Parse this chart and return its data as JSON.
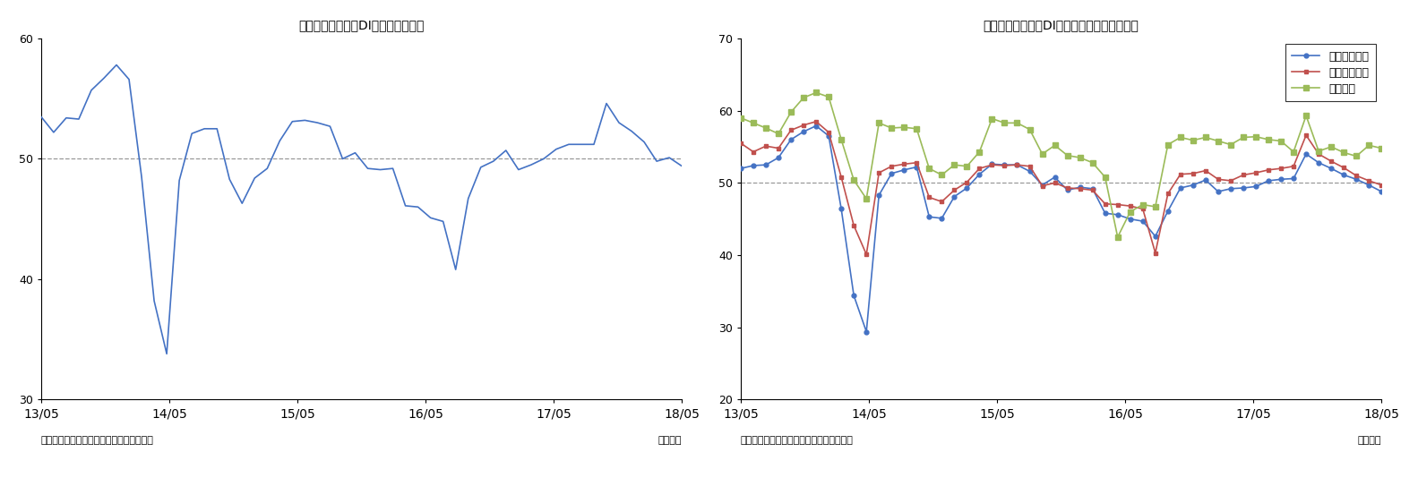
{
  "title1": "景気の先行き判断DI（季節調整値）",
  "title2": "景気の先行き判断DI（分野別、季節調整値）",
  "footnote_left": "（資料）内閣府「景気ウォッチャー調査」",
  "footnote_right": "（月次）",
  "xtick_labels": [
    "13/05",
    "14/05",
    "15/05",
    "16/05",
    "17/05",
    "18/05"
  ],
  "chart1": {
    "ylim": [
      30,
      60
    ],
    "yticks": [
      30,
      40,
      50,
      60
    ],
    "ref_line": 50,
    "color": "#4472C4",
    "values": [
      53.5,
      52.2,
      53.4,
      53.3,
      55.7,
      56.7,
      57.8,
      56.6,
      48.5,
      38.2,
      33.8,
      48.2,
      52.1,
      52.5,
      52.5,
      48.3,
      46.3,
      48.4,
      49.2,
      51.5,
      53.1,
      53.2,
      53.0,
      52.7,
      50.0,
      50.5,
      49.2,
      49.1,
      49.2,
      46.1,
      46.0,
      45.1,
      44.8,
      40.8,
      46.7,
      49.3,
      49.8,
      50.7,
      49.1,
      49.5,
      50.0,
      50.8,
      51.2,
      51.2,
      51.2,
      54.6,
      53.0,
      52.3,
      51.4,
      49.8,
      50.1,
      49.4
    ]
  },
  "chart2": {
    "ylim": [
      20,
      70
    ],
    "yticks": [
      20,
      30,
      40,
      50,
      60,
      70
    ],
    "ref_line": 50,
    "legend": [
      "家計動向関連",
      "企業動向関連",
      "雇用関連"
    ],
    "colors": [
      "#4472C4",
      "#C0504D",
      "#9BBB59"
    ],
    "household": [
      52.0,
      52.4,
      52.5,
      53.5,
      56.0,
      57.1,
      57.9,
      56.5,
      46.4,
      34.4,
      29.4,
      48.3,
      51.3,
      51.8,
      52.2,
      45.3,
      45.1,
      48.1,
      49.3,
      51.2,
      52.6,
      52.5,
      52.5,
      51.6,
      49.7,
      50.8,
      49.0,
      49.4,
      49.2,
      45.8,
      45.6,
      45.0,
      44.7,
      42.6,
      46.1,
      49.3,
      49.7,
      50.4,
      48.8,
      49.2,
      49.3,
      49.5,
      50.3,
      50.5,
      50.6,
      54.0,
      52.8,
      52.0,
      51.1,
      50.5,
      49.7,
      48.8
    ],
    "enterprise": [
      55.5,
      54.3,
      55.1,
      54.8,
      57.3,
      58.0,
      58.5,
      57.0,
      50.8,
      44.1,
      40.1,
      51.4,
      52.3,
      52.6,
      52.8,
      48.0,
      47.4,
      49.0,
      50.1,
      52.0,
      52.5,
      52.4,
      52.5,
      52.3,
      49.6,
      50.0,
      49.3,
      49.2,
      49.0,
      47.1,
      47.0,
      46.8,
      46.4,
      40.3,
      48.5,
      51.2,
      51.3,
      51.7,
      50.5,
      50.3,
      51.1,
      51.4,
      51.8,
      52.0,
      52.3,
      56.6,
      54.0,
      53.0,
      52.1,
      51.0,
      50.3,
      49.7
    ],
    "employment": [
      59.0,
      58.3,
      57.6,
      56.8,
      59.8,
      61.8,
      62.5,
      61.9,
      56.0,
      50.4,
      47.8,
      58.3,
      57.6,
      57.7,
      57.5,
      52.0,
      51.1,
      52.5,
      52.3,
      54.3,
      58.9,
      58.3,
      58.3,
      57.4,
      54.0,
      55.2,
      53.8,
      53.5,
      52.8,
      50.8,
      42.5,
      46.0,
      47.0,
      46.7,
      55.3,
      56.3,
      55.9,
      56.3,
      55.8,
      55.3,
      56.3,
      56.4,
      56.0,
      55.8,
      54.3,
      59.3,
      54.4,
      55.0,
      54.2,
      53.7,
      55.2,
      54.8
    ]
  }
}
